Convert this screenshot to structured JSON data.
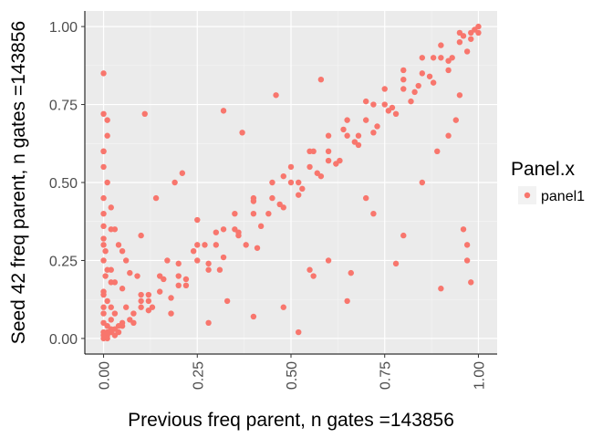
{
  "chart_data": {
    "type": "scatter",
    "xlabel": "Previous freq parent, n gates =143856",
    "ylabel": "Seed 42 freq parent, n gates =143856",
    "xlim": [
      -0.05,
      1.05
    ],
    "ylim": [
      -0.05,
      1.05
    ],
    "x_ticks": [
      "0.00",
      "0.25",
      "0.50",
      "0.75",
      "1.00"
    ],
    "y_ticks": [
      "0.00",
      "0.25",
      "0.50",
      "0.75",
      "1.00"
    ],
    "x_tick_values": [
      0,
      0.25,
      0.5,
      0.75,
      1
    ],
    "y_tick_values": [
      0,
      0.25,
      0.5,
      0.75,
      1
    ],
    "grid": true,
    "legend": {
      "title": "Panel.x",
      "placement": "right",
      "entries": [
        {
          "label": "panel1",
          "color": "#f8766d"
        }
      ]
    },
    "series": [
      {
        "name": "panel1",
        "color": "#f8766d",
        "x": [
          0.0,
          0.005,
          0.01,
          0.02,
          0.03,
          0.05,
          0.08,
          0.1,
          0.15,
          0.2,
          0.25,
          0.3,
          0.35,
          0.4,
          0.45,
          0.5,
          0.55,
          0.6,
          0.65,
          0.7,
          0.75,
          0.8,
          0.85,
          0.9,
          0.95,
          0.98,
          1.0,
          0.0,
          0.0,
          0.0,
          0.0,
          0.005,
          0.005,
          0.01,
          0.01,
          0.02,
          0.03,
          0.04,
          0.06,
          0.08,
          0.1,
          0.12,
          0.15,
          0.18,
          0.2,
          0.22,
          0.25,
          0.28,
          0.3,
          0.32,
          0.35,
          0.38,
          0.4,
          0.42,
          0.45,
          0.48,
          0.5,
          0.52,
          0.55,
          0.58,
          0.6,
          0.62,
          0.65,
          0.68,
          0.7,
          0.72,
          0.75,
          0.78,
          0.8,
          0.82,
          0.85,
          0.88,
          0.9,
          0.92,
          0.95,
          0.97,
          0.99,
          0.0,
          0.01,
          0.02,
          0.03,
          0.05,
          0.07,
          0.1,
          0.13,
          0.16,
          0.2,
          0.24,
          0.28,
          0.32,
          0.36,
          0.4,
          0.44,
          0.48,
          0.52,
          0.56,
          0.6,
          0.64,
          0.68,
          0.72,
          0.76,
          0.8,
          0.84,
          0.88,
          0.92,
          0.96,
          1.0,
          0.0,
          0.0,
          0.0,
          0.0,
          0.0,
          0.0,
          0.01,
          0.01,
          0.02,
          0.02,
          0.03,
          0.05,
          0.1,
          0.14,
          0.19,
          0.21,
          0.25,
          0.32,
          0.37,
          0.46,
          0.52,
          0.56,
          0.58,
          0.66,
          0.7,
          0.78,
          0.8,
          0.9,
          0.96,
          0.97,
          0.97,
          0.98,
          0.0,
          0.0,
          0.0,
          0.01,
          0.01,
          0.02,
          0.04,
          0.06,
          0.09,
          0.12,
          0.11,
          0.18,
          0.28,
          0.33,
          0.4,
          0.48,
          0.55,
          0.6,
          0.65,
          0.72,
          0.85,
          0.89,
          0.92,
          0.94,
          0.95,
          0.98,
          0.0,
          0.0,
          0.01,
          0.02,
          0.03,
          0.04,
          0.0,
          0.0,
          0.02,
          0.05,
          0.07,
          0.12,
          0.17,
          0.22,
          0.27,
          0.31,
          0.36,
          0.41,
          0.47,
          0.53,
          0.57,
          0.63,
          0.67,
          0.73,
          0.77,
          0.83,
          0.87,
          0.93
        ],
        "y": [
          0.0,
          0.005,
          0.01,
          0.02,
          0.03,
          0.05,
          0.08,
          0.1,
          0.15,
          0.2,
          0.25,
          0.3,
          0.35,
          0.4,
          0.45,
          0.5,
          0.55,
          0.6,
          0.65,
          0.7,
          0.75,
          0.8,
          0.85,
          0.9,
          0.95,
          0.98,
          1.0,
          0.02,
          0.05,
          0.1,
          0.15,
          0.2,
          0.28,
          0.04,
          0.12,
          0.06,
          0.08,
          0.02,
          0.1,
          0.05,
          0.14,
          0.09,
          0.2,
          0.13,
          0.24,
          0.17,
          0.3,
          0.22,
          0.34,
          0.26,
          0.4,
          0.3,
          0.45,
          0.36,
          0.5,
          0.42,
          0.55,
          0.46,
          0.6,
          0.52,
          0.65,
          0.56,
          0.7,
          0.62,
          0.76,
          0.66,
          0.8,
          0.72,
          0.86,
          0.76,
          0.9,
          0.82,
          0.94,
          0.86,
          0.98,
          0.92,
          0.99,
          0.01,
          0.0,
          0.03,
          0.01,
          0.04,
          0.06,
          0.12,
          0.1,
          0.19,
          0.17,
          0.28,
          0.24,
          0.35,
          0.33,
          0.44,
          0.4,
          0.52,
          0.5,
          0.6,
          0.57,
          0.67,
          0.65,
          0.75,
          0.73,
          0.83,
          0.81,
          0.9,
          0.89,
          0.97,
          0.98,
          0.85,
          0.4,
          0.36,
          0.32,
          0.3,
          0.25,
          0.5,
          0.22,
          0.42,
          0.18,
          0.35,
          0.28,
          0.33,
          0.45,
          0.5,
          0.53,
          0.38,
          0.73,
          0.66,
          0.78,
          0.02,
          0.2,
          0.83,
          0.21,
          0.45,
          0.24,
          0.33,
          0.16,
          0.35,
          0.3,
          0.25,
          0.18,
          0.45,
          0.55,
          0.6,
          0.65,
          0.7,
          0.35,
          0.3,
          0.25,
          0.2,
          0.12,
          0.72,
          0.08,
          0.05,
          0.12,
          0.07,
          0.1,
          0.22,
          0.25,
          0.12,
          0.4,
          0.5,
          0.6,
          0.65,
          0.7,
          0.78,
          0.96,
          0.08,
          0.14,
          0.02,
          0.1,
          0.18,
          0.04,
          0.6,
          0.72,
          0.22,
          0.16,
          0.21,
          0.14,
          0.25,
          0.19,
          0.3,
          0.22,
          0.34,
          0.29,
          0.43,
          0.48,
          0.53,
          0.57,
          0.63,
          0.68,
          0.74,
          0.79,
          0.84,
          0.9
        ]
      }
    ]
  }
}
